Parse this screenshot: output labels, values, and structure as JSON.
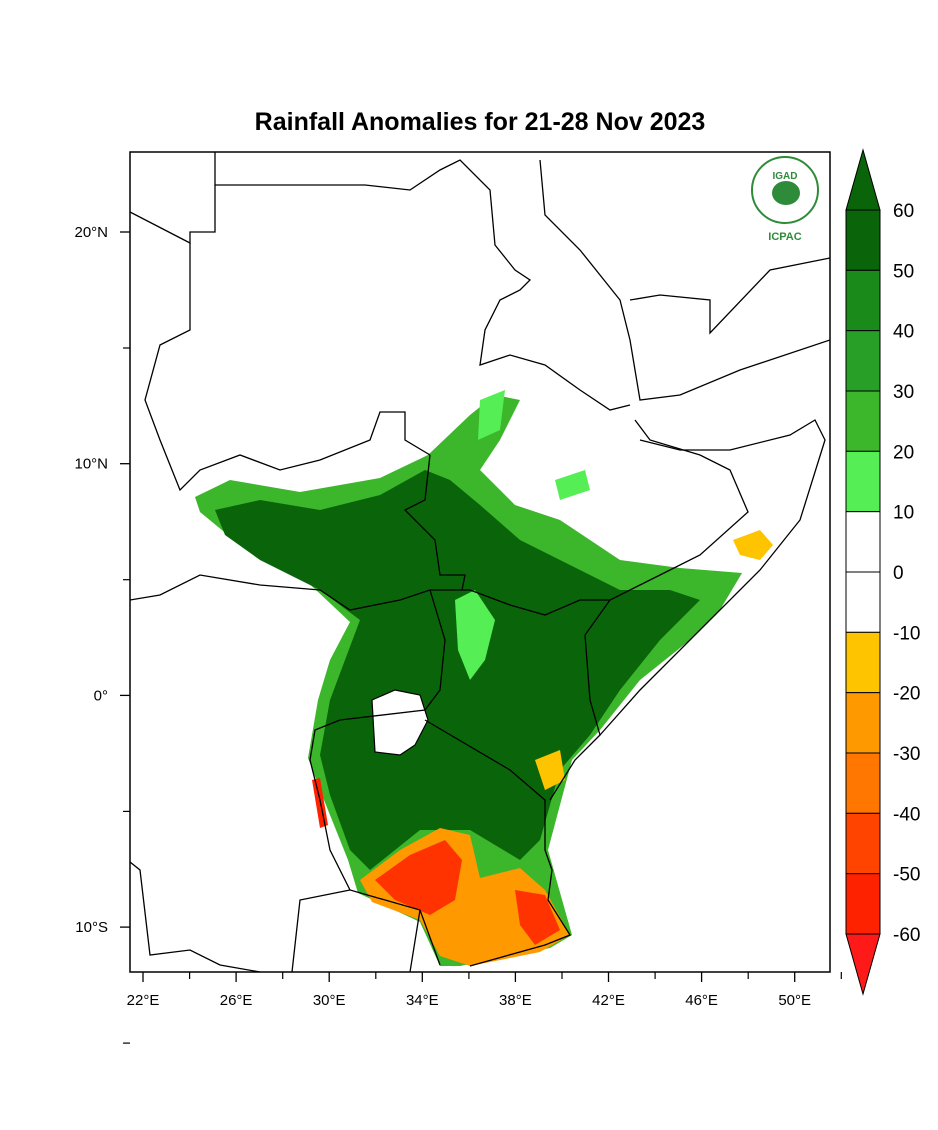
{
  "title": "Rainfall Anomalies for 21-28 Nov 2023",
  "logo": {
    "top": "IGAD",
    "bottom": "ICPAC"
  },
  "map": {
    "lon_ticks": [
      "22°E",
      "26°E",
      "30°E",
      "34°E",
      "38°E",
      "42°E",
      "46°E",
      "50°E"
    ],
    "lat_ticks": [
      "20°N",
      "10°N",
      "0°",
      "10°S"
    ]
  },
  "colorbar": {
    "labels": [
      "60",
      "50",
      "40",
      "30",
      "20",
      "10",
      "0",
      "-10",
      "-20",
      "-30",
      "-40",
      "-50",
      "-60"
    ],
    "colors": [
      "#0a650a",
      "#1a8a1a",
      "#28a028",
      "#3cb62a",
      "#55ee55",
      "#ffffff",
      "#ffffff",
      "#ffc400",
      "#ff9900",
      "#ff7700",
      "#ff4400",
      "#ff2200"
    ],
    "over_color": "#0a650a",
    "under_color": "#ff1a1a"
  }
}
